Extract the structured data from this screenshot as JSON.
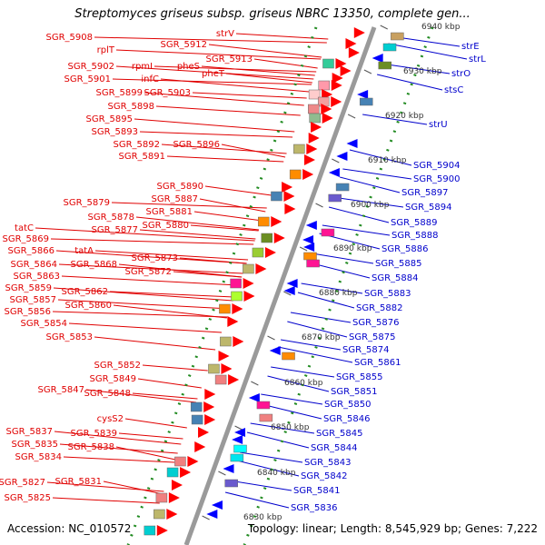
{
  "title": "Streptomyces griseus subsp. griseus NBRC 13350, complete gen...",
  "footer": {
    "accession": "Accession: NC_010572",
    "topology": "Topology: linear; Length: 8,545,929 bp; Genes: 7,222"
  },
  "colors": {
    "forward_label": "#e00000",
    "reverse_label": "#0000cc",
    "forward_arrow": "#ff0000",
    "reverse_arrow": "#0000ff",
    "backbone": "#999999",
    "ruler_dots": "#228b22"
  },
  "ticks": [
    "6940 kbp",
    "6930 kbp",
    "6920 kbp",
    "6910 kbp",
    "6900 kbp",
    "6890 kbp",
    "6880 kbp",
    "6870 kbp",
    "6860 kbp",
    "6850 kbp",
    "6840 kbp",
    "6830 kbp"
  ],
  "left_labels": [
    "SGR_5908",
    "rplT",
    "SGR_5912",
    "strV",
    "SGR_5913",
    "SGR_5902",
    "rpmI",
    "pheS",
    "infC",
    "SGR_5901",
    "pheT",
    "SGR_5899",
    "SGR_5903",
    "SGR_5898",
    "SGR_5895",
    "SGR_5893",
    "SGR_5892",
    "SGR_5896",
    "SGR_5891",
    "SGR_5890",
    "SGR_5887",
    "SGR_5879",
    "SGR_5881",
    "SGR_5878",
    "SGR_5880",
    "SGR_5877",
    "tatC",
    "SGR_5869",
    "tatA",
    "SGR_5866",
    "SGR_5873",
    "SGR_5864",
    "SGR_5868",
    "SGR_5872",
    "SGR_5863",
    "SGR_5859",
    "SGR_5862",
    "SGR_5857",
    "SGR_5860",
    "SGR_5856",
    "SGR_5854",
    "SGR_5853",
    "SGR_5852",
    "SGR_5849",
    "SGR_5847",
    "SGR_5848",
    "cysS2",
    "SGR_5837",
    "SGR_5839",
    "SGR_5835",
    "SGR_5838",
    "SGR_5834",
    "SGR_5827",
    "SGR_5831",
    "SGR_5825"
  ],
  "right_labels": [
    "strE",
    "strL",
    "strO",
    "stsC",
    "strU",
    "SGR_5904",
    "SGR_5900",
    "SGR_5897",
    "SGR_5894",
    "SGR_5889",
    "SGR_5888",
    "SGR_5886",
    "SGR_5885",
    "SGR_5884",
    "SGR_5883",
    "SGR_5882",
    "SGR_5876",
    "SGR_5875",
    "SGR_5874",
    "SGR_5861",
    "SGR_5855",
    "SGR_5851",
    "SGR_5850",
    "SGR_5846",
    "SGR_5845",
    "SGR_5844",
    "SGR_5843",
    "SGR_5842",
    "SGR_5841",
    "SGR_5836"
  ]
}
